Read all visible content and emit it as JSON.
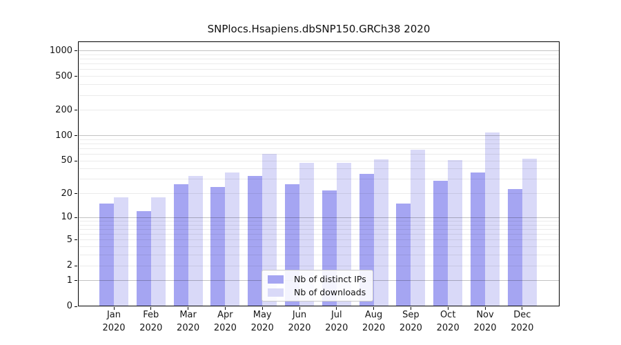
{
  "chart_data": {
    "type": "bar",
    "title": "SNPlocs.Hsapiens.dbSNP150.GRCh38 2020",
    "categories": [
      "Jan 2020",
      "Feb 2020",
      "Mar 2020",
      "Apr 2020",
      "May 2020",
      "Jun 2020",
      "Jul 2020",
      "Aug 2020",
      "Sep 2020",
      "Oct 2020",
      "Nov 2020",
      "Dec 2020"
    ],
    "series": [
      {
        "name": "Nb of distinct IPs",
        "color": "#a5a5f2",
        "values": [
          15,
          12,
          26,
          24,
          33,
          26,
          22,
          35,
          15,
          29,
          36,
          23
        ]
      },
      {
        "name": "Nb of downloads",
        "color": "#d9d9f8",
        "values": [
          18,
          18,
          33,
          36,
          61,
          47,
          47,
          52,
          68,
          51,
          110,
          53
        ]
      }
    ],
    "y_ticks": [
      0,
      1,
      2,
      5,
      10,
      20,
      50,
      100,
      200,
      500,
      1000
    ],
    "y_scale": "log10(1+y)",
    "ylim": [
      0,
      1290
    ],
    "xlabel": "",
    "ylabel": "",
    "grid": "horizontal; major lines at 1,10,100,1000; minor log lines at 2-9, 20-90, 200-900",
    "legend_position": "lower center",
    "background": "#ffffff"
  }
}
